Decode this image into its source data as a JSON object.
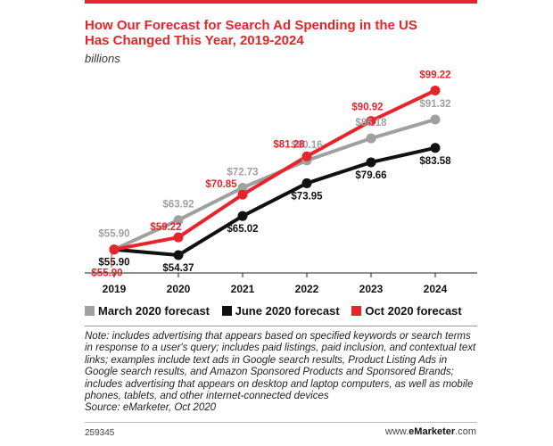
{
  "header": {
    "title_line1": "How Our Forecast for Search Ad Spending in the US",
    "title_line2": "Has Changed This Year, 2019-2024",
    "subtitle": "billions"
  },
  "chart_data": {
    "type": "line",
    "x": [
      "2019",
      "2020",
      "2021",
      "2022",
      "2023",
      "2024"
    ],
    "ylim": [
      50,
      102
    ],
    "grid": false,
    "legend_position": "bottom",
    "series": [
      {
        "name": "March 2020 forecast",
        "color": "#a0a0a0",
        "values": [
          55.9,
          63.92,
          72.73,
          80.16,
          86.18,
          91.32
        ],
        "labels": [
          "$55.90",
          "$63.92",
          "$72.73",
          "$80.16",
          "$86.18",
          "$91.32"
        ]
      },
      {
        "name": "June 2020 forecast",
        "color": "#111111",
        "values": [
          55.9,
          54.37,
          65.02,
          73.95,
          79.66,
          83.58
        ],
        "labels": [
          "$55.90",
          "$54.37",
          "$65.02",
          "$73.95",
          "$79.66",
          "$83.58"
        ]
      },
      {
        "name": "Oct 2020 forecast",
        "color": "#e8242a",
        "values": [
          55.9,
          59.22,
          70.85,
          81.28,
          90.92,
          99.22
        ],
        "labels": [
          "$55.90",
          "$59.22",
          "$70.85",
          "$81.28",
          "$90.92",
          "$99.22"
        ]
      }
    ]
  },
  "note": {
    "text": "Note: includes advertising that appears based on specified keywords or search terms in response to a user's query; includes paid listings, paid inclusion, and contextual text links; examples include text ads in Google search results, Product Listing Ads in Google search results, and Amazon Sponsored Products and Sponsored Brands; includes advertising that appears on desktop and laptop computers, as well as mobile phones, tablets, and other internet-connected devices",
    "source": "Source: eMarketer, Oct 2020"
  },
  "footer": {
    "id": "259345",
    "brand_prefix": "www.",
    "brand_name": "eMarketer",
    "brand_suffix": ".com"
  }
}
